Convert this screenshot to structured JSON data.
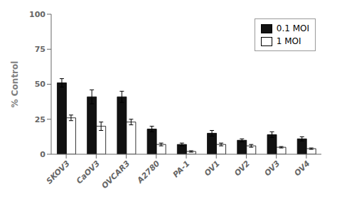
{
  "chart_data": {
    "type": "bar",
    "y_label": "% Control",
    "categories": [
      "SKOV3",
      "CaOV3",
      "OVCAR3",
      "A2780",
      "PA-1",
      "OV1",
      "OV2",
      "OV3",
      "OV4"
    ],
    "series": [
      {
        "name": "0.1 MOI",
        "color": "#111111",
        "values": [
          51,
          41,
          41,
          18,
          7,
          15,
          10,
          14,
          11
        ],
        "errors": [
          3,
          5,
          4,
          2,
          1,
          2,
          1,
          2,
          1.5
        ]
      },
      {
        "name": "1 MOI",
        "color": "#ffffff",
        "values": [
          26,
          20,
          23,
          7,
          2,
          7,
          6,
          5,
          4
        ],
        "errors": [
          2,
          3,
          2,
          1,
          0.5,
          1,
          1,
          0.5,
          0.5
        ]
      }
    ],
    "ylim": [
      0,
      100
    ],
    "yticks": [
      0,
      25,
      50,
      75,
      100
    ],
    "grid": false,
    "legend": "upper right"
  }
}
